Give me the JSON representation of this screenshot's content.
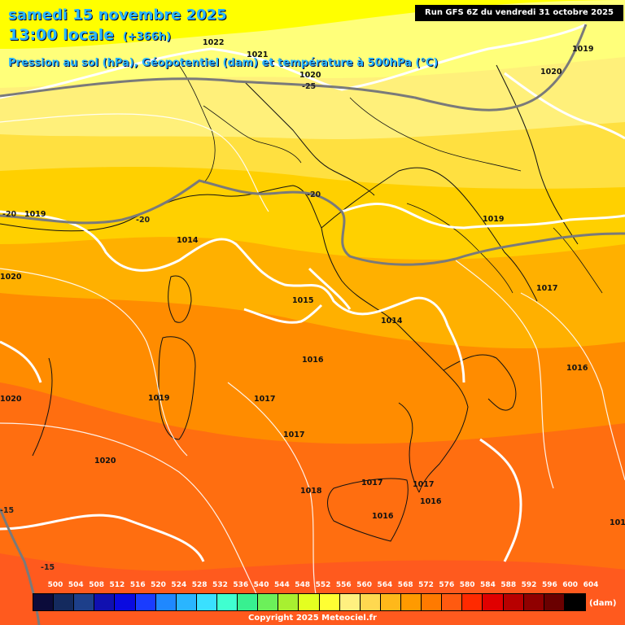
{
  "header": {
    "date": "samedi 15 novembre 2025",
    "time": "13:00 locale",
    "lead": "(+366h)",
    "description": "Pression au sol (hPa), Géopotentiel (dam) et température à 500hPa (°C)",
    "run": "Run GFS 6Z du vendredi 31 octobre 2025"
  },
  "pressure_labels": [
    "1022",
    "1021",
    "1020",
    "1019",
    "1020",
    "1019",
    "1014",
    "1019",
    "1017",
    "1015",
    "1014",
    "1016",
    "1016",
    "1017",
    "1017",
    "1019",
    "1020",
    "1020",
    "1020",
    "1018",
    "1017",
    "1017",
    "1016",
    "1016",
    "1016",
    "101"
  ],
  "temperature_labels": [
    "-25",
    "-20",
    "-20",
    "-20",
    "-15",
    "-15"
  ],
  "legend": {
    "unit": "(dam)",
    "values": [
      "500",
      "504",
      "508",
      "512",
      "516",
      "520",
      "524",
      "528",
      "532",
      "536",
      "540",
      "544",
      "548",
      "552",
      "556",
      "560",
      "564",
      "568",
      "572",
      "576",
      "580",
      "584",
      "588",
      "592",
      "596",
      "600",
      "604"
    ],
    "colors": [
      "#0b0b3a",
      "#142a5e",
      "#1d3f8a",
      "#1010b0",
      "#0a0ae0",
      "#1a3cff",
      "#1f88ff",
      "#2ab5ff",
      "#3ae0ff",
      "#40ffd0",
      "#38f090",
      "#6cf05a",
      "#a8f030",
      "#e4ff20",
      "#ffff33",
      "#fff080",
      "#ffd850",
      "#ffb81a",
      "#ff9a00",
      "#ff7a00",
      "#ff5a10",
      "#ff2a00",
      "#e00000",
      "#b80000",
      "#900000",
      "#6a0000",
      "#000000"
    ]
  },
  "copyright": "Copyright 2025 Meteociel.fr"
}
